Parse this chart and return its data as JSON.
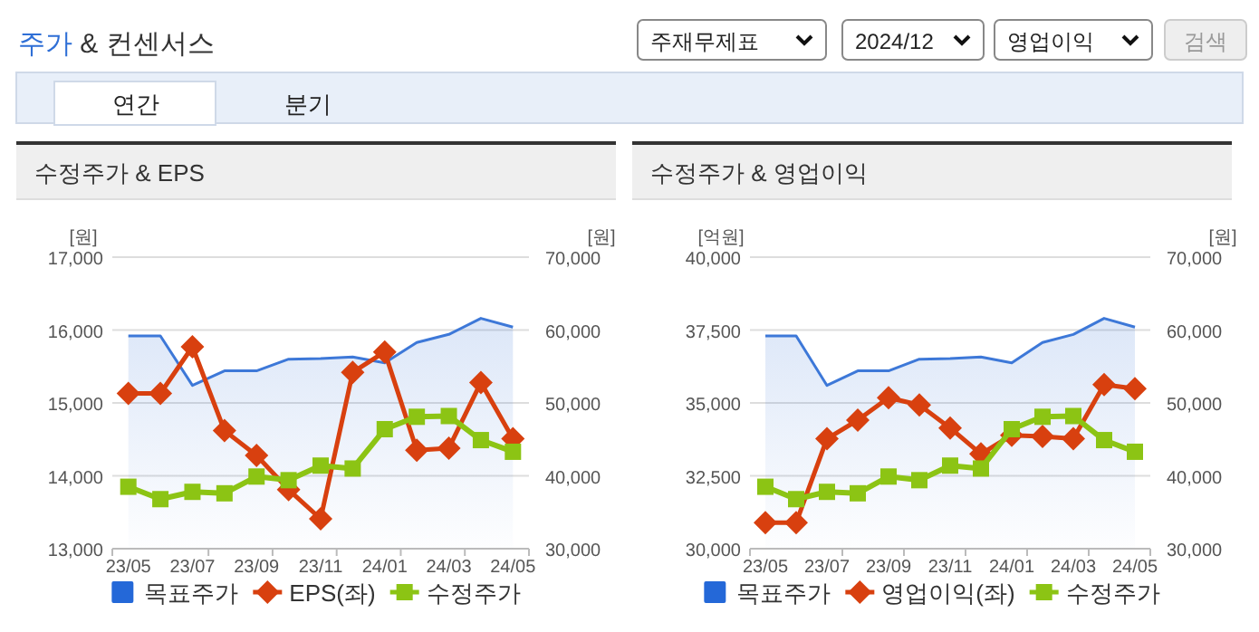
{
  "chart_data": [
    {
      "type": "other",
      "title": "주가 & 컨센서스",
      "annotations": [
        "주재무제표",
        "2024/12",
        "영업이익",
        "검색",
        "연간",
        "분기"
      ]
    },
    {
      "type": "line",
      "title": "수정주가 & EPS",
      "ylabel": "[원]",
      "y2label": "[원]",
      "grid": "y",
      "legend": "bottom",
      "categories": [
        "23/05",
        null,
        "23/07",
        null,
        "23/09",
        null,
        "23/11",
        null,
        "24/01",
        null,
        "24/03",
        null,
        "24/05"
      ],
      "ylim": [
        13000,
        17000
      ],
      "yticks": [
        {
          "value": 13000,
          "label": "13,000"
        },
        {
          "value": 14000,
          "label": "14,000"
        },
        {
          "value": 15000,
          "label": "15,000"
        },
        {
          "value": 16000,
          "label": "16,000"
        },
        {
          "value": 17000,
          "label": "17,000"
        }
      ],
      "y2lim": [
        30000,
        70000
      ],
      "y2ticks": [
        {
          "value": 30000,
          "label": "30,000"
        },
        {
          "value": 40000,
          "label": "40,000"
        },
        {
          "value": 50000,
          "label": "50,000"
        },
        {
          "value": 60000,
          "label": "60,000"
        },
        {
          "value": 70000,
          "label": "70,000"
        }
      ],
      "series": [
        {
          "name": "목표주가",
          "type": "area",
          "axis": "y2",
          "marker": "none",
          "color": "#3d78d8",
          "values": [
            59200,
            59200,
            52400,
            54400,
            54400,
            56000,
            56100,
            56300,
            55500,
            58300,
            59400,
            61600,
            60400
          ]
        },
        {
          "name": "EPS(좌)",
          "type": "line",
          "marker": "diamond",
          "color": "#d8400f",
          "values": [
            15130,
            15130,
            15770,
            14620,
            14280,
            13810,
            13410,
            15420,
            15700,
            14350,
            14380,
            15280,
            14510
          ]
        },
        {
          "name": "수정주가",
          "type": "line",
          "axis": "y2",
          "marker": "square",
          "color": "#8cc414",
          "values": [
            38500,
            36800,
            37800,
            37600,
            39900,
            39400,
            41400,
            41000,
            46400,
            48100,
            48200,
            44900,
            43300
          ]
        }
      ]
    },
    {
      "type": "line",
      "title": "수정주가 & 영업이익",
      "ylabel": "[억원]",
      "y2label": "[원]",
      "grid": "y",
      "legend": "bottom",
      "categories": [
        "23/05",
        null,
        "23/07",
        null,
        "23/09",
        null,
        "23/11",
        null,
        "24/01",
        null,
        "24/03",
        null,
        "24/05"
      ],
      "ylim": [
        30000,
        40000
      ],
      "yticks": [
        {
          "value": 30000,
          "label": "30,000"
        },
        {
          "value": 32500,
          "label": "32,500"
        },
        {
          "value": 35000,
          "label": "35,000"
        },
        {
          "value": 37500,
          "label": "37,500"
        },
        {
          "value": 40000,
          "label": "40,000"
        }
      ],
      "y2lim": [
        30000,
        70000
      ],
      "y2ticks": [
        {
          "value": 30000,
          "label": "30,000"
        },
        {
          "value": 40000,
          "label": "40,000"
        },
        {
          "value": 50000,
          "label": "50,000"
        },
        {
          "value": 60000,
          "label": "60,000"
        },
        {
          "value": 70000,
          "label": "70,000"
        }
      ],
      "series": [
        {
          "name": "목표주가",
          "type": "area",
          "axis": "y2",
          "marker": "none",
          "color": "#3d78d8",
          "values": [
            59200,
            59200,
            52400,
            54400,
            54400,
            56000,
            56100,
            56300,
            55500,
            58300,
            59400,
            61600,
            60400
          ]
        },
        {
          "name": "영업이익(좌)",
          "type": "line",
          "marker": "diamond",
          "color": "#d8400f",
          "values": [
            30890,
            30890,
            33770,
            34410,
            35180,
            34930,
            34140,
            33250,
            33890,
            33850,
            33770,
            35630,
            35490
          ]
        },
        {
          "name": "수정주가",
          "type": "line",
          "axis": "y2",
          "marker": "square",
          "color": "#8cc414",
          "values": [
            38500,
            36800,
            37800,
            37600,
            39900,
            39400,
            41400,
            41000,
            46400,
            48100,
            48200,
            44900,
            43300
          ]
        }
      ]
    }
  ]
}
